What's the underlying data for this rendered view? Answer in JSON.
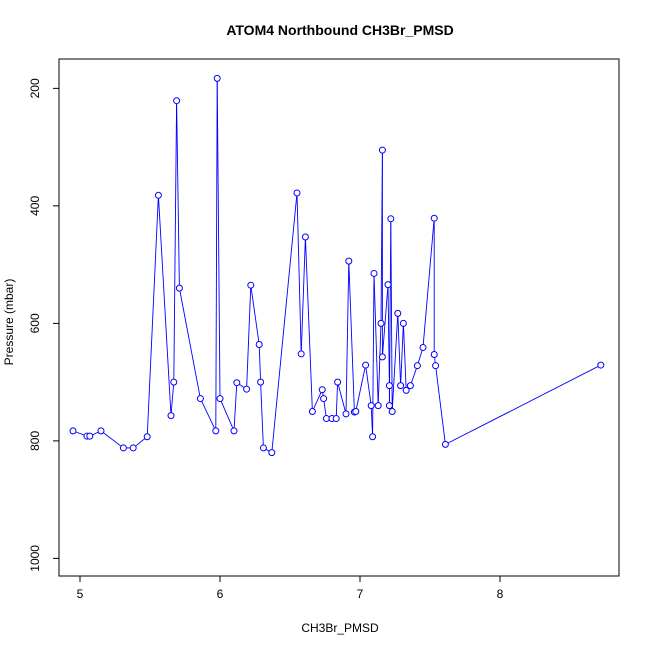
{
  "chart_data": {
    "type": "line",
    "title": "ATOM4 Northbound CH3Br_PMSD",
    "xlabel": "CH3Br_PMSD",
    "ylabel": "Pressure (mbar)",
    "xlim": [
      4.85,
      8.85
    ],
    "ylim": [
      1030,
      150
    ],
    "y_reversed": true,
    "x_ticks": [
      5,
      6,
      7,
      8
    ],
    "y_ticks": [
      200,
      400,
      600,
      800,
      1000
    ],
    "x_tick_labels": [
      "5",
      "6",
      "7",
      "8"
    ],
    "y_tick_labels": [
      "200",
      "400",
      "600",
      "800",
      "1000"
    ],
    "grid": false,
    "legend": "none",
    "series_color": "#0000ff",
    "markers": "open-circle",
    "series": [
      {
        "x": [
          4.95,
          5.05,
          5.07,
          5.15,
          5.31,
          5.38,
          5.48,
          5.56,
          5.65,
          5.67,
          5.69,
          5.71,
          5.86,
          5.97,
          5.98,
          6.0,
          6.1,
          6.12,
          6.19,
          6.22,
          6.28,
          6.29,
          6.31,
          6.37,
          6.55,
          6.58,
          6.61,
          6.66,
          6.73,
          6.74,
          6.76,
          6.8,
          6.83,
          6.84,
          6.9,
          6.92,
          6.96,
          6.97,
          7.04,
          7.08,
          7.09,
          7.1,
          7.13,
          7.15,
          7.16,
          7.16,
          7.2,
          7.21,
          7.21,
          7.22,
          7.23,
          7.27,
          7.29,
          7.31,
          7.33,
          7.36,
          7.41,
          7.45,
          7.53,
          7.53,
          7.54,
          7.61,
          8.72
        ],
        "y": [
          783,
          792,
          792,
          783,
          812,
          812,
          793,
          382,
          757,
          700,
          221,
          540,
          728,
          783,
          183,
          728,
          783,
          701,
          712,
          535,
          636,
          700,
          812,
          820,
          378,
          652,
          453,
          750,
          713,
          728,
          762,
          762,
          762,
          700,
          754,
          494,
          751,
          750,
          671,
          740,
          793,
          515,
          740,
          600,
          305,
          657,
          534,
          706,
          740,
          422,
          750,
          583,
          706,
          600,
          714,
          706,
          672,
          641,
          421,
          653,
          672,
          806,
          671
        ]
      }
    ]
  }
}
